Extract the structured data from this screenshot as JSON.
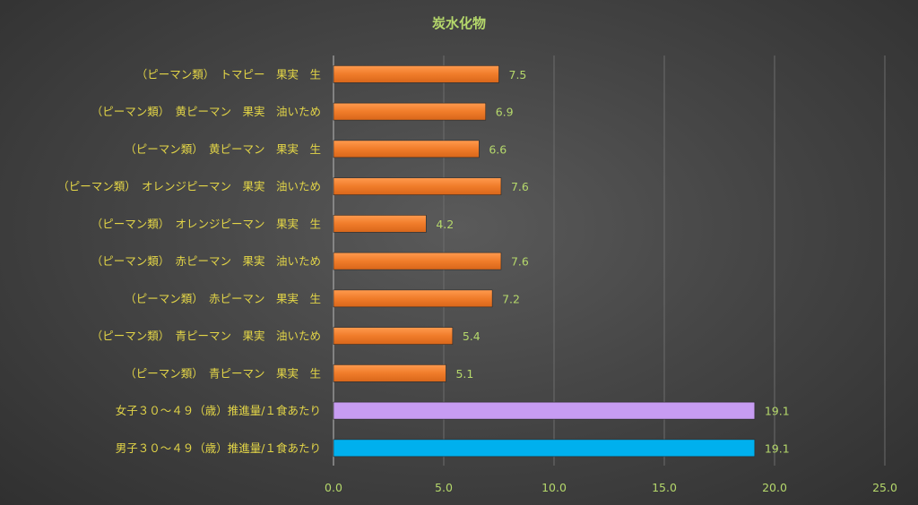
{
  "chart_data": {
    "type": "bar",
    "orientation": "horizontal",
    "title": "炭水化物",
    "xlim": [
      0,
      25
    ],
    "x_ticks": [
      "0.0",
      "5.0",
      "10.0",
      "15.0",
      "20.0",
      "25.0"
    ],
    "grid": true,
    "categories": [
      "（ピーマン類）　トマピー　果実　生",
      "（ピーマン類）　黄ピーマン　果実　油いため",
      "（ピーマン類）　黄ピーマン　果実　生",
      "（ピーマン類）　オレンジピーマン　果実　油いため",
      "（ピーマン類）　オレンジピーマン　果実　生",
      "（ピーマン類）　赤ピーマン　果実　油いため",
      "（ピーマン類）　赤ピーマン　果実　生",
      "（ピーマン類）　青ピーマン　果実　油いため",
      "（ピーマン類）　青ピーマン　果実　生",
      "女子３０～４９（歳）推進量/１食あたり",
      "男子３０～４９（歳）推進量/１食あたり"
    ],
    "values": [
      7.5,
      6.9,
      6.6,
      7.6,
      4.2,
      7.6,
      7.2,
      5.4,
      5.1,
      19.1,
      19.1
    ],
    "value_labels": [
      "7.5",
      "6.9",
      "6.6",
      "7.6",
      "4.2",
      "7.6",
      "7.2",
      "5.4",
      "5.1",
      "19.1",
      "19.1"
    ],
    "bar_colors": [
      "#f07c2a",
      "#f07c2a",
      "#f07c2a",
      "#f07c2a",
      "#f07c2a",
      "#f07c2a",
      "#f07c2a",
      "#f07c2a",
      "#f07c2a",
      "#c79cf2",
      "#00b0ee"
    ]
  }
}
